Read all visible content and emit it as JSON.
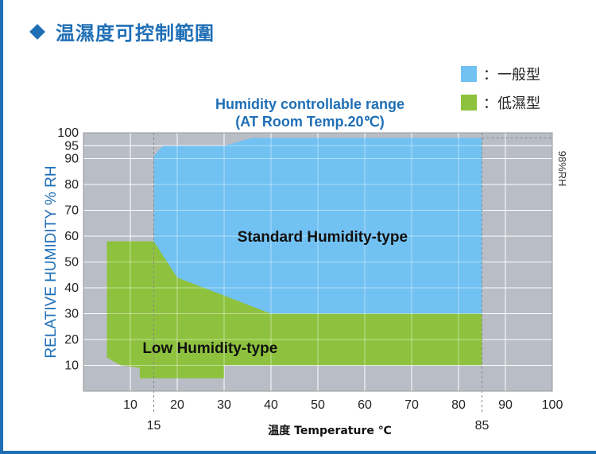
{
  "header": {
    "title": "温濕度可控制範圍"
  },
  "legend": [
    {
      "label": "：一般型",
      "color": "#71c1f2"
    },
    {
      "label": "：低濕型",
      "color": "#8ec23e"
    }
  ],
  "chart_data": {
    "type": "area",
    "title": "Humidity controllable range",
    "subtitle": "(AT Room Temp.20℃)",
    "xlabel": "温度 Temperature ℃",
    "ylabel": "RELATIVE HUMIDITY % RH",
    "right_label": "98%RH",
    "x_ticks": [
      10,
      20,
      30,
      40,
      50,
      60,
      70,
      80,
      90,
      100
    ],
    "x_ticks_extra": [
      15,
      85
    ],
    "y_ticks": [
      10,
      20,
      30,
      40,
      50,
      60,
      70,
      80,
      90,
      95,
      100
    ],
    "xlim": [
      0,
      100
    ],
    "ylim": [
      0,
      100
    ],
    "grid": true,
    "series": [
      {
        "name": "Standard Humidity-type",
        "color": "#71c1f2",
        "points": [
          [
            15,
            30
          ],
          [
            15,
            91
          ],
          [
            17,
            95
          ],
          [
            30,
            95
          ],
          [
            36,
            98
          ],
          [
            85,
            98
          ],
          [
            85,
            30
          ]
        ]
      },
      {
        "name": "Low Humidity-type",
        "color": "#8ec23e",
        "points": [
          [
            5,
            13
          ],
          [
            5,
            58
          ],
          [
            15,
            58
          ],
          [
            20,
            44
          ],
          [
            40,
            30
          ],
          [
            85,
            30
          ],
          [
            85,
            10
          ],
          [
            30,
            10
          ],
          [
            30,
            5
          ],
          [
            12,
            5
          ],
          [
            12,
            9
          ],
          [
            8,
            10
          ]
        ]
      }
    ],
    "region_labels": [
      {
        "text": "Standard Humidity-type",
        "x": 51,
        "y": 60
      },
      {
        "text": "Low Humidity-type",
        "x": 27,
        "y": 17
      }
    ]
  }
}
